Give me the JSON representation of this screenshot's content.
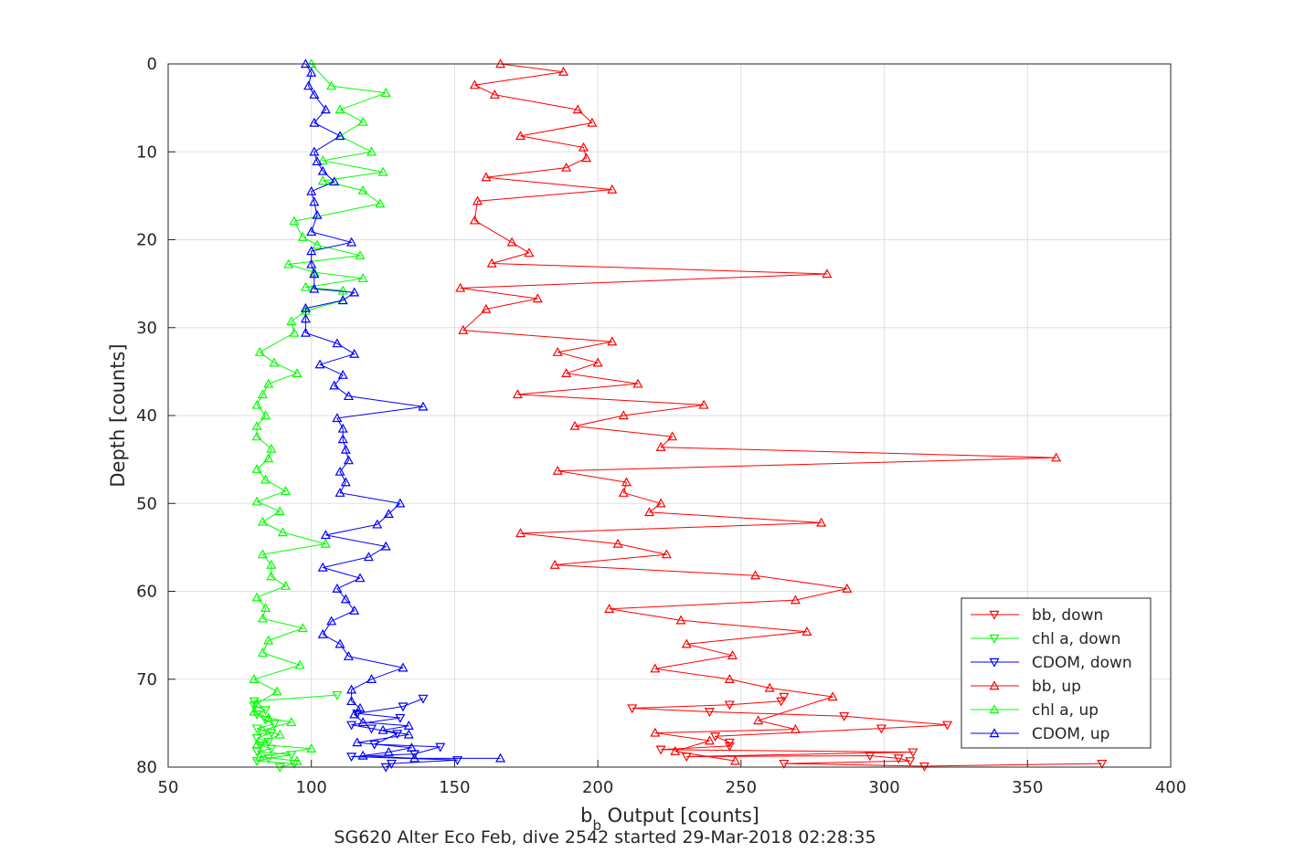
{
  "chart_data": {
    "type": "line",
    "title": "SG620 Alter Eco Feb, dive 2542 started 29-Mar-2018 02:28:35",
    "xlabel_main": "b",
    "xlabel_sub": "b",
    "xlabel_rest": " Output [counts]",
    "ylabel": "Depth [counts]",
    "xlim": [
      50,
      400
    ],
    "ylim": [
      0,
      80
    ],
    "y_reversed": true,
    "grid": true,
    "legend_position": "bottom-right",
    "xticks": [
      "50",
      "100",
      "150",
      "200",
      "250",
      "300",
      "350",
      "400"
    ],
    "yticks": [
      "0",
      "10",
      "20",
      "30",
      "40",
      "50",
      "60",
      "70",
      "80"
    ],
    "series": [
      {
        "name": "bb, down",
        "color": "#ff0000",
        "marker": "triangle-down",
        "points": [
          [
            376,
            79.6
          ],
          [
            314,
            79.9
          ],
          [
            265,
            79.6
          ],
          [
            309,
            79.3
          ],
          [
            305,
            79.0
          ],
          [
            295,
            78.7
          ],
          [
            231,
            78.8
          ],
          [
            310,
            78.3
          ],
          [
            222,
            78.0
          ],
          [
            246,
            77.6
          ],
          [
            246,
            77.2
          ],
          [
            241,
            76.5
          ],
          [
            299,
            75.6
          ],
          [
            322,
            75.2
          ],
          [
            286,
            74.2
          ],
          [
            239,
            73.7
          ],
          [
            212,
            73.3
          ],
          [
            246,
            72.9
          ],
          [
            264,
            72.5
          ],
          [
            265,
            72.0
          ]
        ]
      },
      {
        "name": "chl a, down",
        "color": "#00ff00",
        "marker": "triangle-down",
        "points": [
          [
            89,
            80.0
          ],
          [
            94,
            79.6
          ],
          [
            81,
            79.3
          ],
          [
            85,
            79.0
          ],
          [
            93,
            78.6
          ],
          [
            81,
            78.2
          ],
          [
            86,
            77.9
          ],
          [
            82,
            77.5
          ],
          [
            85,
            77.1
          ],
          [
            81,
            76.7
          ],
          [
            86,
            76.1
          ],
          [
            81,
            75.6
          ],
          [
            87,
            75.1
          ],
          [
            84,
            74.6
          ],
          [
            81,
            74.0
          ],
          [
            84,
            73.5
          ],
          [
            80,
            73.0
          ],
          [
            80,
            72.5
          ],
          [
            109,
            71.8
          ]
        ]
      },
      {
        "name": "CDOM, down",
        "color": "#0000ff",
        "marker": "triangle-down",
        "points": [
          [
            126,
            80.0
          ],
          [
            128,
            79.6
          ],
          [
            151,
            79.2
          ],
          [
            114,
            78.8
          ],
          [
            136,
            78.5
          ],
          [
            145,
            77.7
          ],
          [
            122,
            77.4
          ],
          [
            130,
            76.2
          ],
          [
            121,
            75.6
          ],
          [
            114,
            75.2
          ],
          [
            131,
            74.4
          ],
          [
            116,
            73.9
          ],
          [
            132,
            73.1
          ],
          [
            139,
            72.2
          ]
        ]
      },
      {
        "name": "bb, up",
        "color": "#ff0000",
        "marker": "triangle-up",
        "points": [
          [
            248,
            79.3
          ],
          [
            227,
            78.2
          ],
          [
            239,
            77.0
          ],
          [
            220,
            76.1
          ],
          [
            269,
            75.7
          ],
          [
            256,
            74.7
          ],
          [
            282,
            72.0
          ],
          [
            260,
            71.0
          ],
          [
            246,
            70.0
          ],
          [
            220,
            68.8
          ],
          [
            247,
            67.3
          ],
          [
            231,
            66.0
          ],
          [
            273,
            64.6
          ],
          [
            229,
            63.3
          ],
          [
            204,
            62.0
          ],
          [
            269,
            61.0
          ],
          [
            287,
            59.7
          ],
          [
            255,
            58.2
          ],
          [
            185,
            57.0
          ],
          [
            224,
            55.8
          ],
          [
            207,
            54.6
          ],
          [
            173,
            53.4
          ],
          [
            278,
            52.2
          ],
          [
            218,
            51.0
          ],
          [
            222,
            50.0
          ],
          [
            209,
            48.8
          ],
          [
            210,
            47.6
          ],
          [
            186,
            46.3
          ],
          [
            360,
            44.8
          ],
          [
            222,
            43.6
          ],
          [
            226,
            42.4
          ],
          [
            192,
            41.2
          ],
          [
            209,
            40.0
          ],
          [
            237,
            38.8
          ],
          [
            172,
            37.6
          ],
          [
            214,
            36.4
          ],
          [
            189,
            35.2
          ],
          [
            200,
            34.0
          ],
          [
            186,
            32.8
          ],
          [
            205,
            31.6
          ],
          [
            153,
            30.3
          ],
          [
            161,
            27.9
          ],
          [
            179,
            26.7
          ],
          [
            152,
            25.5
          ],
          [
            280,
            23.9
          ],
          [
            163,
            22.7
          ],
          [
            176,
            21.5
          ],
          [
            170,
            20.3
          ],
          [
            157,
            17.8
          ],
          [
            158,
            15.6
          ],
          [
            205,
            14.3
          ],
          [
            161,
            12.9
          ],
          [
            189,
            11.8
          ],
          [
            196,
            10.7
          ],
          [
            195,
            9.5
          ],
          [
            173,
            8.2
          ],
          [
            198,
            6.7
          ],
          [
            193,
            5.2
          ],
          [
            164,
            3.5
          ],
          [
            157,
            2.4
          ],
          [
            188,
            0.9
          ],
          [
            166,
            0.0
          ]
        ]
      },
      {
        "name": "chl a, up",
        "color": "#00ff00",
        "marker": "triangle-up",
        "points": [
          [
            95,
            79.3
          ],
          [
            82,
            78.8
          ],
          [
            100,
            77.9
          ],
          [
            81,
            77.4
          ],
          [
            89,
            76.3
          ],
          [
            83,
            75.8
          ],
          [
            93,
            74.9
          ],
          [
            85,
            74.4
          ],
          [
            80,
            73.7
          ],
          [
            81,
            72.8
          ],
          [
            88,
            71.4
          ],
          [
            80,
            70.0
          ],
          [
            96,
            68.4
          ],
          [
            83,
            67.0
          ],
          [
            85,
            65.6
          ],
          [
            97,
            64.2
          ],
          [
            83,
            63.1
          ],
          [
            84,
            61.9
          ],
          [
            81,
            60.7
          ],
          [
            91,
            59.4
          ],
          [
            86,
            58.3
          ],
          [
            86,
            57.0
          ],
          [
            83,
            55.8
          ],
          [
            105,
            54.6
          ],
          [
            90,
            53.3
          ],
          [
            83,
            52.1
          ],
          [
            89,
            50.9
          ],
          [
            81,
            49.8
          ],
          [
            91,
            48.6
          ],
          [
            84,
            47.3
          ],
          [
            81,
            46.1
          ],
          [
            85,
            44.9
          ],
          [
            86,
            43.8
          ],
          [
            81,
            42.4
          ],
          [
            81,
            41.2
          ],
          [
            84,
            40.0
          ],
          [
            81,
            38.8
          ],
          [
            83,
            37.6
          ],
          [
            85,
            36.4
          ],
          [
            95,
            35.2
          ],
          [
            87,
            34.0
          ],
          [
            82,
            32.8
          ],
          [
            94,
            30.6
          ],
          [
            93,
            29.3
          ],
          [
            98,
            28.1
          ],
          [
            111,
            26.9
          ],
          [
            111,
            25.8
          ],
          [
            98,
            25.4
          ],
          [
            118,
            24.4
          ],
          [
            101,
            23.7
          ],
          [
            92,
            22.8
          ],
          [
            117,
            21.8
          ],
          [
            102,
            20.6
          ],
          [
            97,
            19.7
          ],
          [
            94,
            17.9
          ],
          [
            124,
            15.9
          ],
          [
            118,
            14.4
          ],
          [
            104,
            13.3
          ],
          [
            125,
            12.3
          ],
          [
            104,
            11.0
          ],
          [
            121,
            10.0
          ],
          [
            110,
            8.2
          ],
          [
            118,
            6.6
          ],
          [
            110,
            5.2
          ],
          [
            126,
            3.3
          ],
          [
            107,
            2.5
          ],
          [
            100,
            0.0
          ]
        ]
      },
      {
        "name": "CDOM, up",
        "color": "#0000ff",
        "marker": "triangle-up",
        "points": [
          [
            166,
            79.0
          ],
          [
            136,
            79.0
          ],
          [
            118,
            78.7
          ],
          [
            127,
            78.3
          ],
          [
            135,
            77.8
          ],
          [
            116,
            77.2
          ],
          [
            134,
            76.3
          ],
          [
            125,
            75.8
          ],
          [
            134,
            75.3
          ],
          [
            118,
            74.9
          ],
          [
            115,
            74.0
          ],
          [
            117,
            73.3
          ],
          [
            114,
            72.5
          ],
          [
            114,
            71.2
          ],
          [
            121,
            70.0
          ],
          [
            132,
            68.7
          ],
          [
            113,
            67.4
          ],
          [
            110,
            66.0
          ],
          [
            104,
            64.9
          ],
          [
            107,
            63.4
          ],
          [
            115,
            62.2
          ],
          [
            112,
            60.9
          ],
          [
            109,
            59.7
          ],
          [
            117,
            58.5
          ],
          [
            104,
            57.3
          ],
          [
            120,
            56.1
          ],
          [
            126,
            54.9
          ],
          [
            105,
            53.6
          ],
          [
            123,
            52.4
          ],
          [
            127,
            51.2
          ],
          [
            131,
            50.0
          ],
          [
            110,
            48.8
          ],
          [
            112,
            47.6
          ],
          [
            110,
            46.4
          ],
          [
            113,
            45.1
          ],
          [
            112,
            43.9
          ],
          [
            111,
            42.7
          ],
          [
            111,
            41.5
          ],
          [
            109,
            40.3
          ],
          [
            139,
            39.0
          ],
          [
            113,
            37.8
          ],
          [
            108,
            36.6
          ],
          [
            111,
            35.4
          ],
          [
            103,
            34.2
          ],
          [
            115,
            33.0
          ],
          [
            109,
            31.8
          ],
          [
            98,
            30.6
          ],
          [
            98,
            29.0
          ],
          [
            98,
            27.8
          ],
          [
            111,
            26.9
          ],
          [
            115,
            26.0
          ],
          [
            101,
            25.6
          ],
          [
            101,
            23.9
          ],
          [
            100,
            22.8
          ],
          [
            100,
            21.3
          ],
          [
            114,
            20.3
          ],
          [
            100,
            19.1
          ],
          [
            102,
            17.2
          ],
          [
            101,
            15.7
          ],
          [
            100,
            14.5
          ],
          [
            108,
            13.4
          ],
          [
            104,
            12.2
          ],
          [
            102,
            11.1
          ],
          [
            101,
            10.0
          ],
          [
            110,
            8.2
          ],
          [
            101,
            6.7
          ],
          [
            105,
            5.2
          ],
          [
            101,
            3.5
          ],
          [
            99,
            2.5
          ],
          [
            100,
            1.0
          ],
          [
            98,
            0.0
          ]
        ]
      }
    ]
  }
}
